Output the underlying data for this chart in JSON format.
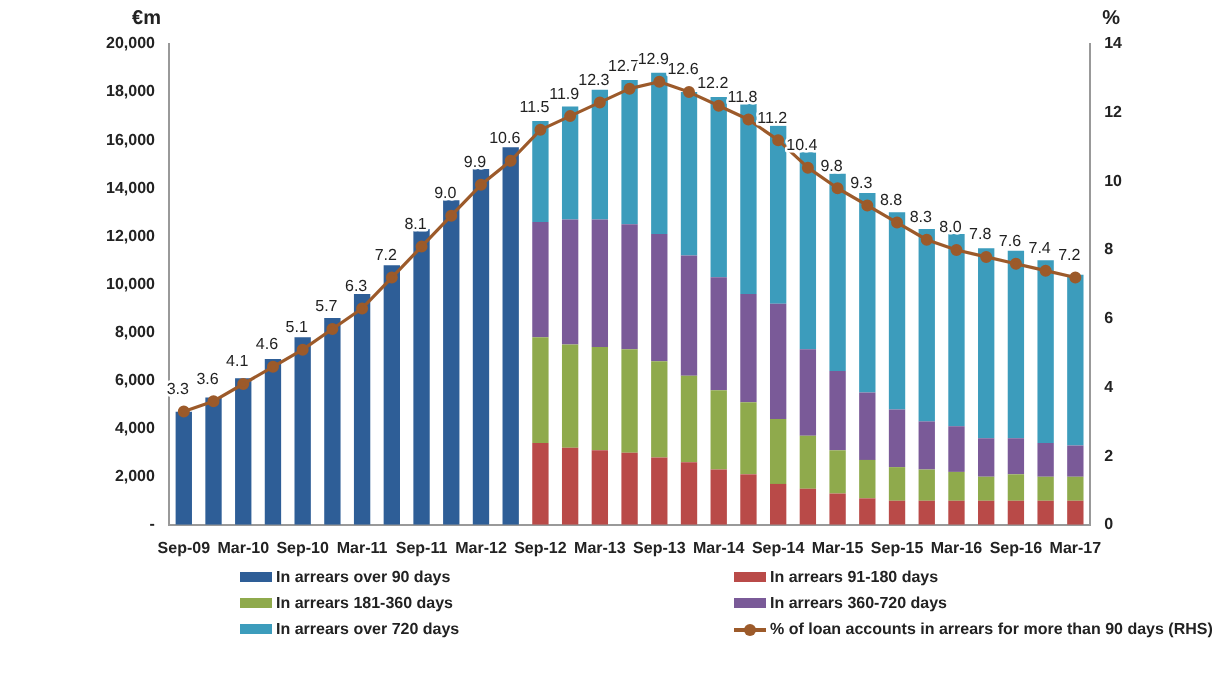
{
  "chart_data": {
    "type": "bar",
    "stacked": true,
    "ylabel": "€m",
    "y2label": "%",
    "categories": [
      "Sep-09",
      null,
      "Mar-10",
      null,
      "Sep-10",
      null,
      "Mar-11",
      null,
      "Sep-11",
      null,
      "Mar-12",
      null,
      "Sep-12",
      null,
      "Mar-13",
      null,
      "Sep-13",
      null,
      "Mar-14",
      null,
      "Sep-14",
      null,
      "Mar-15",
      null,
      "Sep-15",
      null,
      "Mar-16",
      null,
      "Sep-16",
      null,
      "Mar-17"
    ],
    "series": [
      {
        "name": "In arrears over 90 days",
        "color": "#2e5e97",
        "values": [
          4700,
          5300,
          6100,
          6900,
          7800,
          8600,
          9600,
          10800,
          12300,
          13500,
          14800,
          15700,
          null,
          null,
          null,
          null,
          null,
          null,
          null,
          null,
          null,
          null,
          null,
          null,
          null,
          null,
          null,
          null,
          null,
          null,
          null
        ]
      },
      {
        "name": "In arrears 91-180 days",
        "color": "#b94a48",
        "values": [
          null,
          null,
          null,
          null,
          null,
          null,
          null,
          null,
          null,
          null,
          null,
          null,
          3400,
          3200,
          3100,
          3000,
          2800,
          2600,
          2300,
          2100,
          1700,
          1500,
          1300,
          1100,
          1000,
          1000,
          1000,
          1000,
          1000,
          1000,
          1000
        ]
      },
      {
        "name": "In arrears 181-360 days",
        "color": "#8faa4c",
        "values": [
          null,
          null,
          null,
          null,
          null,
          null,
          null,
          null,
          null,
          null,
          null,
          null,
          4400,
          4300,
          4300,
          4300,
          4000,
          3600,
          3300,
          3000,
          2700,
          2200,
          1800,
          1600,
          1400,
          1300,
          1200,
          1000,
          1100,
          1000,
          1000
        ]
      },
      {
        "name": "In arrears 360-720 days",
        "color": "#7a5a98",
        "values": [
          null,
          null,
          null,
          null,
          null,
          null,
          null,
          null,
          null,
          null,
          null,
          null,
          4800,
          5200,
          5300,
          5200,
          5300,
          5000,
          4700,
          4500,
          4800,
          3600,
          3300,
          2800,
          2400,
          2000,
          1900,
          1600,
          1500,
          1400,
          1300
        ]
      },
      {
        "name": "In arrears over 720 days",
        "color": "#3c9cbc",
        "values": [
          null,
          null,
          null,
          null,
          null,
          null,
          null,
          null,
          null,
          null,
          null,
          null,
          4200,
          4700,
          5400,
          6000,
          6700,
          6800,
          7500,
          7900,
          7400,
          8200,
          8200,
          8300,
          8200,
          8000,
          8000,
          7900,
          7800,
          7600,
          7100
        ]
      },
      {
        "name": "% of loan accounts in arrears for more than 90 days (RHS)",
        "type": "line",
        "axis": "y2",
        "color": "#9c5a2a",
        "marker": "circle",
        "values": [
          3.3,
          3.6,
          4.1,
          4.6,
          5.1,
          5.7,
          6.3,
          7.2,
          8.1,
          9.0,
          9.9,
          10.6,
          11.5,
          11.9,
          12.3,
          12.7,
          12.9,
          12.6,
          12.2,
          11.8,
          11.2,
          10.4,
          9.8,
          9.3,
          8.8,
          8.3,
          8.0,
          7.8,
          7.6,
          7.4,
          7.2
        ],
        "value_labels": [
          "3.3",
          "3.6",
          "4.1",
          "4.6",
          "5.1",
          "5.7",
          "6.3",
          "7.2",
          "8.1",
          "9.0",
          "9.9",
          "10.6",
          "11.5",
          "11.9",
          "12.3",
          "12.7",
          "12.9",
          "12.6",
          "12.2",
          "11.8",
          "11.2",
          "10.4",
          "9.8",
          "9.3",
          "8.8",
          "8.3",
          "8.0",
          "7.8",
          "7.6",
          "7.4",
          "7.2"
        ]
      }
    ],
    "ylim": [
      0,
      20000
    ],
    "yticks": [
      {
        "value": 0,
        "label": "-"
      },
      {
        "value": 2000,
        "label": "2,000"
      },
      {
        "value": 4000,
        "label": "4,000"
      },
      {
        "value": 6000,
        "label": "6,000"
      },
      {
        "value": 8000,
        "label": "8,000"
      },
      {
        "value": 10000,
        "label": "10,000"
      },
      {
        "value": 12000,
        "label": "12,000"
      },
      {
        "value": 14000,
        "label": "14,000"
      },
      {
        "value": 16000,
        "label": "16,000"
      },
      {
        "value": 18000,
        "label": "18,000"
      },
      {
        "value": 20000,
        "label": "20,000"
      }
    ],
    "y2lim": [
      0,
      14
    ],
    "y2ticks": [
      0,
      2,
      4,
      6,
      8,
      10,
      12,
      14
    ],
    "grid": false,
    "legend": "bottom"
  }
}
